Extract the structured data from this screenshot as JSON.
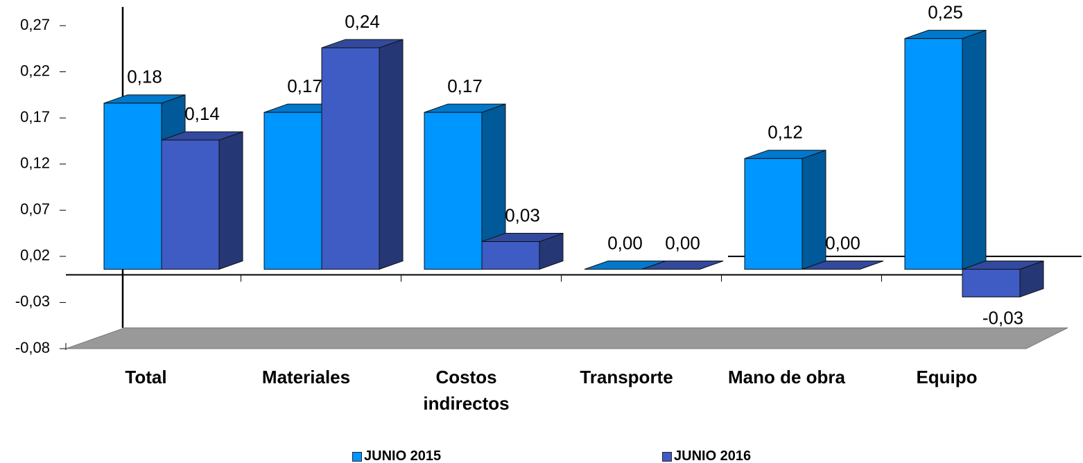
{
  "chart_data": {
    "type": "bar3d",
    "categories": [
      "Total",
      "Materiales",
      "Costos indirectos",
      "Transporte",
      "Mano de obra",
      "Equipo"
    ],
    "series": [
      {
        "name": "JUNIO 2015",
        "color": "#0096ff",
        "values": [
          0.18,
          0.17,
          0.17,
          0.0,
          0.12,
          0.25
        ],
        "value_labels": [
          "0,18",
          "0,17",
          "0,17",
          "0,00",
          "0,12",
          "0,25"
        ]
      },
      {
        "name": "JUNIO 2016",
        "color": "#3f5bc4",
        "values": [
          0.14,
          0.24,
          0.03,
          0.0,
          0.0,
          -0.03
        ],
        "value_labels": [
          "0,14",
          "0,24",
          "0,03",
          "0,00",
          "0,00",
          "-0,03"
        ]
      }
    ],
    "ylim": [
      -0.08,
      0.27
    ],
    "yticks": [
      {
        "value": -0.08,
        "label": "-0,08"
      },
      {
        "value": -0.03,
        "label": "-0,03"
      },
      {
        "value": 0.02,
        "label": "0,02"
      },
      {
        "value": 0.07,
        "label": "0,07"
      },
      {
        "value": 0.12,
        "label": "0,12"
      },
      {
        "value": 0.17,
        "label": "0,17"
      },
      {
        "value": 0.22,
        "label": "0,22"
      },
      {
        "value": 0.27,
        "label": "0,27"
      }
    ]
  }
}
